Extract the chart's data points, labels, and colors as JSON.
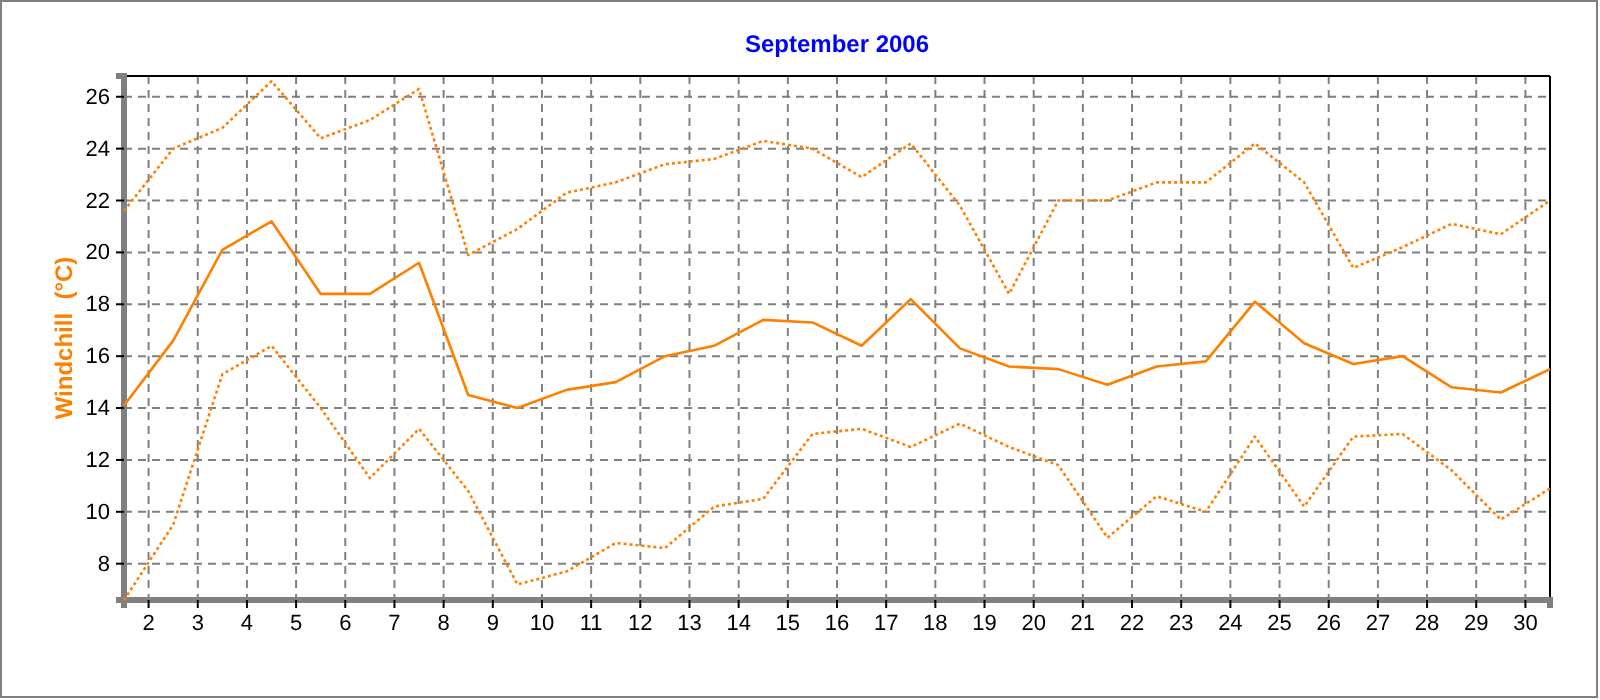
{
  "chart_data": {
    "type": "line",
    "title": "September 2006",
    "ylabel": "Windchill  (°C)",
    "x": [
      1.5,
      2.5,
      3.5,
      4.5,
      5.5,
      6.5,
      7.5,
      8.5,
      9.5,
      10.5,
      11.5,
      12.5,
      13.5,
      14.5,
      15.5,
      16.5,
      17.5,
      18.5,
      19.5,
      20.5,
      21.5,
      22.5,
      23.5,
      24.5,
      25.5,
      26.5,
      27.5,
      28.5,
      29.5,
      30.5
    ],
    "series": [
      {
        "color": "#ff8000",
        "line_style": "dotted",
        "values": [
          21.6,
          24.0,
          24.8,
          26.6,
          24.4,
          25.1,
          26.3,
          19.9,
          20.9,
          22.3,
          22.7,
          23.4,
          23.6,
          24.3,
          24.0,
          22.9,
          24.2,
          21.8,
          18.4,
          22.0,
          22.0,
          22.7,
          22.7,
          24.2,
          22.7,
          19.4,
          20.2,
          21.1,
          20.7,
          22.0
        ]
      },
      {
        "color": "#ff8000",
        "line_style": "solid",
        "values": [
          14.1,
          16.6,
          20.1,
          21.2,
          18.4,
          18.4,
          19.6,
          14.5,
          14.0,
          14.7,
          15.0,
          16.0,
          16.4,
          17.4,
          17.3,
          16.4,
          18.2,
          16.3,
          15.6,
          15.5,
          14.9,
          15.6,
          15.8,
          18.1,
          16.5,
          15.7,
          16.0,
          14.8,
          14.6,
          15.5
        ]
      },
      {
        "color": "#ff8000",
        "line_style": "dotted",
        "values": [
          6.6,
          9.5,
          15.3,
          16.4,
          14.0,
          11.3,
          13.2,
          10.8,
          7.2,
          7.7,
          8.8,
          8.6,
          10.2,
          10.5,
          13.0,
          13.2,
          12.5,
          13.4,
          12.5,
          11.8,
          9.0,
          10.6,
          10.0,
          12.9,
          10.2,
          12.9,
          13.0,
          11.6,
          9.7,
          10.9
        ]
      }
    ],
    "xlim": [
      1.5,
      30.5
    ],
    "xticks": [
      2,
      3,
      4,
      5,
      6,
      7,
      8,
      9,
      10,
      11,
      12,
      13,
      14,
      15,
      16,
      17,
      18,
      19,
      20,
      21,
      22,
      23,
      24,
      25,
      26,
      27,
      28,
      29,
      30
    ],
    "ylim": [
      6.6,
      26.8
    ],
    "yticks": [
      8,
      10,
      12,
      14,
      16,
      18,
      20,
      22,
      24,
      26
    ],
    "grid": true
  }
}
